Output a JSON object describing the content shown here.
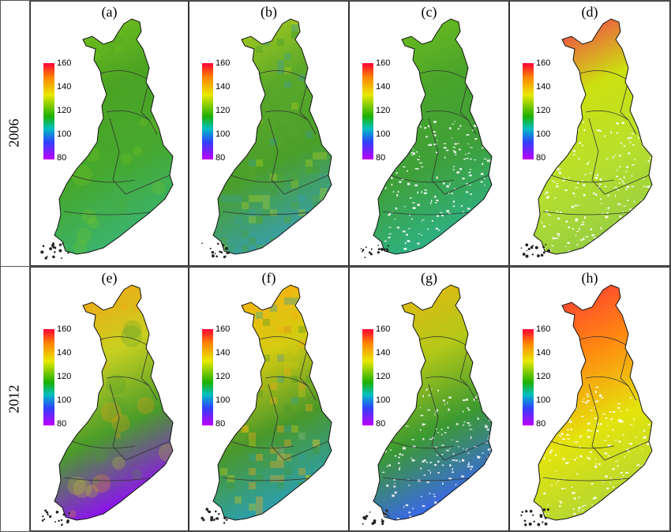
{
  "rows": [
    {
      "label": "2006",
      "panels": [
        {
          "label": "(a)",
          "style": "smooth",
          "colors": {
            "north": "#7cc81a",
            "mid": "#4ba323",
            "south": "#46a82e",
            "southwest": "#3bb36a"
          }
        },
        {
          "label": "(b)",
          "style": "blocky",
          "colors": {
            "north": "#b8d21a",
            "mid": "#5aa82a",
            "south": "#4a9f2a",
            "southwest": "#3a9fa0"
          }
        },
        {
          "label": "(c)",
          "style": "speckled",
          "colors": {
            "north": "#74c41c",
            "mid": "#4aa42a",
            "south": "#3fa03a",
            "southwest": "#2fb080"
          }
        },
        {
          "label": "(d)",
          "style": "speckled",
          "colors": {
            "north": "#ff1a5a",
            "mid": "#cce010",
            "south": "#b8e02c",
            "southwest": "#9ad040"
          }
        }
      ]
    },
    {
      "label": "2012",
      "panels": [
        {
          "label": "(e)",
          "style": "smooth",
          "colors": {
            "north": "#ff9a10",
            "mid": "#c8d020",
            "south": "#4a9c2a",
            "southwest": "#8a18e8"
          }
        },
        {
          "label": "(f)",
          "style": "blocky",
          "colors": {
            "north": "#ffaa12",
            "mid": "#d4cc10",
            "south": "#4a982a",
            "southwest": "#2e9fa8"
          }
        },
        {
          "label": "(g)",
          "style": "speckled",
          "colors": {
            "north": "#f0b40e",
            "mid": "#b4c818",
            "south": "#3c9a30",
            "southwest": "#3a6ae0"
          }
        },
        {
          "label": "(h)",
          "style": "speckled",
          "colors": {
            "north": "#ff2a3c",
            "mid": "#ff8a10",
            "south": "#e4e40c",
            "southwest": "#b8d830"
          }
        }
      ]
    }
  ],
  "colorbar": {
    "ticks": [
      "160",
      "140",
      "120",
      "100",
      "80"
    ],
    "min": 80,
    "max": 160
  }
}
